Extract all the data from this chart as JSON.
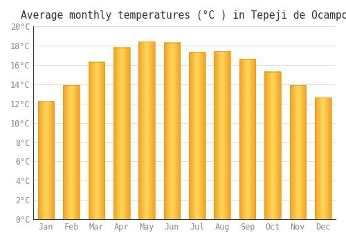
{
  "title": "Average monthly temperatures (°C ) in Tepeji de Ocampo",
  "months": [
    "Jan",
    "Feb",
    "Mar",
    "Apr",
    "May",
    "Jun",
    "Jul",
    "Aug",
    "Sep",
    "Oct",
    "Nov",
    "Dec"
  ],
  "values": [
    12.2,
    13.9,
    16.3,
    17.8,
    18.4,
    18.3,
    17.3,
    17.4,
    16.6,
    15.3,
    13.9,
    12.6
  ],
  "bar_color_left": "#F5A623",
  "bar_color_center": "#FFD860",
  "bar_color_right": "#F5A623",
  "background_color": "#FFFFFF",
  "grid_color": "#E0E0E0",
  "text_color": "#888888",
  "ylim": [
    0,
    20
  ],
  "ytick_step": 2,
  "title_fontsize": 10.5,
  "tick_fontsize": 8.5
}
